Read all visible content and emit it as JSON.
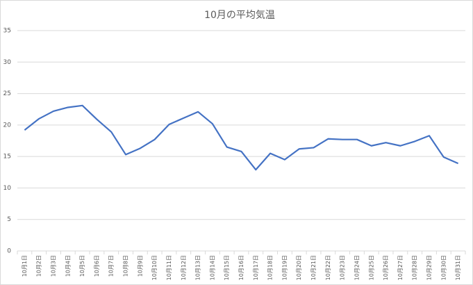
{
  "chart_data": {
    "type": "line",
    "title": "10月の平均気温",
    "categories": [
      "10月1日",
      "10月2日",
      "10月3日",
      "10月4日",
      "10月5日",
      "10月6日",
      "10月7日",
      "10月8日",
      "10月9日",
      "10月10日",
      "10月11日",
      "10月12日",
      "10月13日",
      "10月14日",
      "10月15日",
      "10月16日",
      "10月17日",
      "10月18日",
      "10月19日",
      "10月20日",
      "10月21日",
      "10月22日",
      "10月23日",
      "10月24日",
      "10月25日",
      "10月26日",
      "10月27日",
      "10月28日",
      "10月29日",
      "10月30日",
      "10月31日"
    ],
    "values": [
      19.2,
      21.0,
      22.2,
      22.8,
      23.1,
      20.9,
      18.9,
      15.3,
      16.3,
      17.7,
      20.1,
      21.1,
      22.1,
      20.2,
      16.5,
      15.8,
      12.9,
      15.5,
      14.5,
      16.2,
      16.4,
      17.8,
      17.7,
      17.7,
      16.7,
      17.2,
      16.7,
      17.4,
      18.3,
      14.9,
      13.9
    ],
    "color": "#4472c4",
    "ylim": [
      0,
      35
    ],
    "yticks": [
      0,
      5,
      10,
      15,
      20,
      25,
      30,
      35
    ],
    "grid": true
  }
}
